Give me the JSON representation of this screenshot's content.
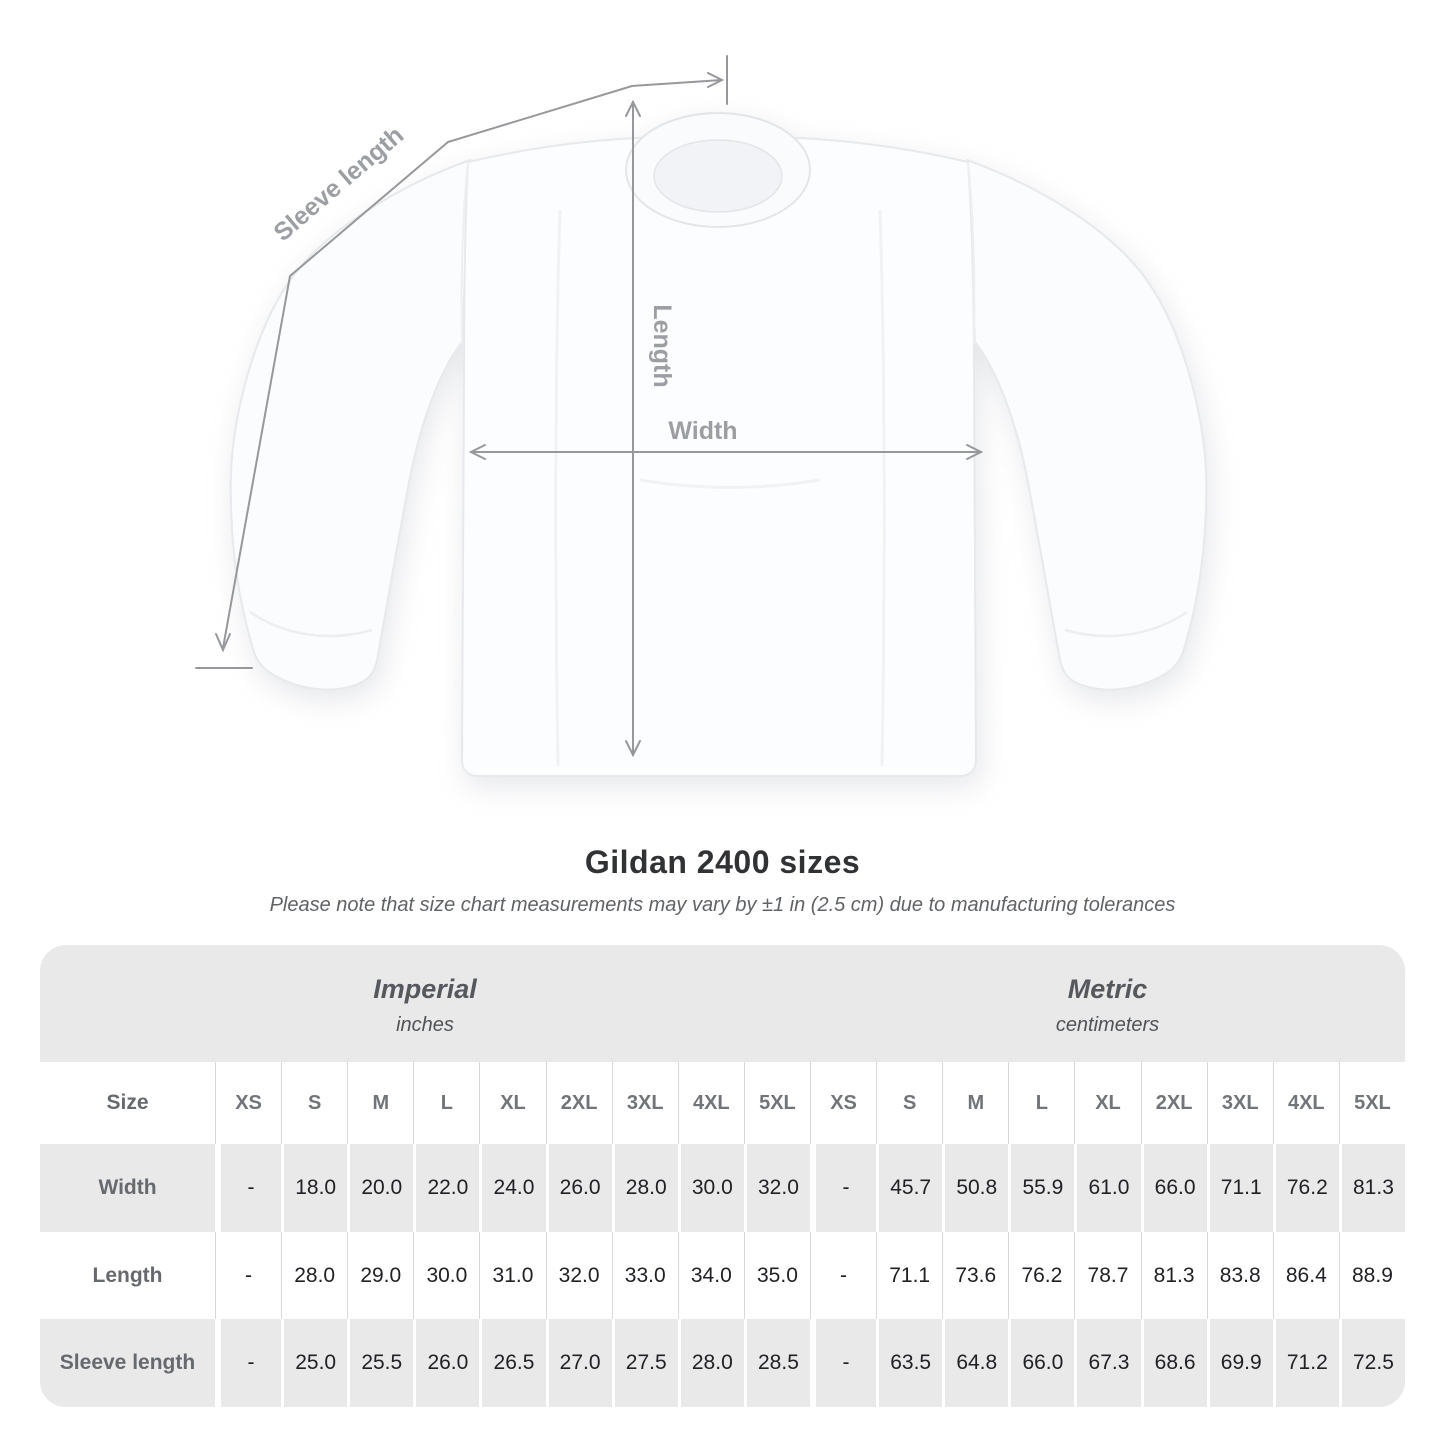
{
  "title": "Gildan 2400 sizes",
  "subtitle": "Please note that size chart measurements may vary by ±1 in (2.5 cm) due to manufacturing tolerances",
  "diagram": {
    "sleeve_length_label": "Sleeve length",
    "length_label": "Length",
    "width_label": "Width",
    "line_color": "#96989b",
    "label_color": "#9b9ea3"
  },
  "table": {
    "unit_groups": [
      {
        "name": "Imperial",
        "unit": "inches"
      },
      {
        "name": "Metric",
        "unit": "centimeters"
      }
    ],
    "size_label": "Size",
    "sizes": [
      "XS",
      "S",
      "M",
      "L",
      "XL",
      "2XL",
      "3XL",
      "4XL",
      "5XL"
    ],
    "rows": [
      {
        "label": "Width",
        "imperial": [
          "-",
          "18.0",
          "20.0",
          "22.0",
          "24.0",
          "26.0",
          "28.0",
          "30.0",
          "32.0"
        ],
        "metric": [
          "-",
          "45.7",
          "50.8",
          "55.9",
          "61.0",
          "66.0",
          "71.1",
          "76.2",
          "81.3"
        ]
      },
      {
        "label": "Length",
        "imperial": [
          "-",
          "28.0",
          "29.0",
          "30.0",
          "31.0",
          "32.0",
          "33.0",
          "34.0",
          "35.0"
        ],
        "metric": [
          "-",
          "71.1",
          "73.6",
          "76.2",
          "78.7",
          "81.3",
          "83.8",
          "86.4",
          "88.9"
        ]
      },
      {
        "label": "Sleeve length",
        "imperial": [
          "-",
          "25.0",
          "25.5",
          "26.0",
          "26.5",
          "27.0",
          "27.5",
          "28.0",
          "28.5"
        ],
        "metric": [
          "-",
          "63.5",
          "64.8",
          "66.0",
          "67.3",
          "68.6",
          "69.9",
          "71.2",
          "72.5"
        ]
      }
    ],
    "colors": {
      "band_gray": "#e9e9ea",
      "divider_on_white": "#d8d9da",
      "header_text": "#717579",
      "data_text": "#202124"
    }
  }
}
